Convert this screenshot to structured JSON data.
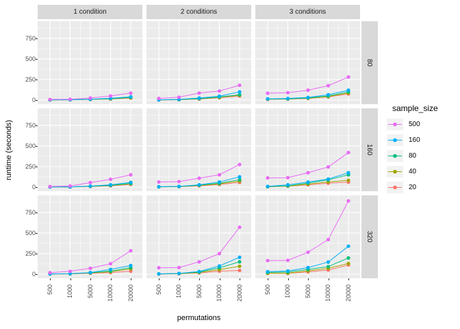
{
  "chart_data": {
    "type": "line",
    "xlabel": "permutations",
    "ylabel": "runtime (seconds)",
    "x_categories": [
      "500",
      "1000",
      "5000",
      "10000",
      "20000"
    ],
    "y_tick_labels": [
      "0",
      "250",
      "500",
      "750"
    ],
    "y_major": [
      0,
      250,
      500,
      750
    ],
    "y_minor": [
      125,
      375,
      625,
      875
    ],
    "ylim": [
      -50,
      958
    ],
    "grid": true,
    "col_facets": [
      "1 condition",
      "2 conditions",
      "3 conditions"
    ],
    "row_facets": [
      "80",
      "160",
      "320"
    ],
    "legend": {
      "title": "sample_size",
      "entries": [
        {
          "label": "500",
          "color": "#e76bf3"
        },
        {
          "label": "160",
          "color": "#00b0f6"
        },
        {
          "label": "80",
          "color": "#00bf7d"
        },
        {
          "label": "40",
          "color": "#a3a500"
        },
        {
          "label": "20",
          "color": "#f8766d"
        }
      ]
    },
    "colors": {
      "500": "#e76bf3",
      "160": "#00b0f6",
      "80": "#00bf7d",
      "40": "#a3a500",
      "20": "#f8766d"
    },
    "draw_order": [
      "20",
      "40",
      "80",
      "160",
      "500"
    ],
    "style": {
      "panel_bg": "#ebebeb",
      "strip_bg": "#d9d9d9",
      "grid_color": "#ffffff"
    },
    "panels": [
      {
        "row": "80",
        "col": "1 condition",
        "series": {
          "500": [
            8,
            10,
            25,
            50,
            85
          ],
          "160": [
            3,
            4,
            10,
            22,
            40
          ],
          "80": [
            3,
            4,
            9,
            17,
            33
          ],
          "40": [
            2,
            3,
            8,
            14,
            28
          ],
          "20": [
            2,
            3,
            7,
            12,
            24
          ]
        }
      },
      {
        "row": "80",
        "col": "2 conditions",
        "series": {
          "500": [
            20,
            35,
            85,
            110,
            180
          ],
          "160": [
            3,
            8,
            25,
            47,
            100
          ],
          "80": [
            3,
            6,
            18,
            38,
            65
          ],
          "40": [
            2,
            5,
            15,
            33,
            58
          ],
          "20": [
            2,
            4,
            12,
            28,
            50
          ]
        }
      },
      {
        "row": "80",
        "col": "3 conditions",
        "series": {
          "500": [
            83,
            90,
            120,
            175,
            280
          ],
          "160": [
            15,
            20,
            32,
            65,
            120
          ],
          "80": [
            12,
            15,
            27,
            50,
            100
          ],
          "40": [
            10,
            13,
            23,
            43,
            85
          ],
          "20": [
            8,
            11,
            20,
            38,
            75
          ]
        }
      },
      {
        "row": "160",
        "col": "1 condition",
        "series": {
          "500": [
            8,
            14,
            55,
            95,
            150
          ],
          "160": [
            2,
            3,
            12,
            28,
            58
          ],
          "80": [
            2,
            3,
            10,
            22,
            46
          ],
          "40": [
            2,
            3,
            9,
            19,
            40
          ],
          "20": [
            2,
            2,
            7,
            15,
            33
          ]
        }
      },
      {
        "row": "160",
        "col": "2 conditions",
        "series": {
          "500": [
            63,
            67,
            108,
            150,
            275
          ],
          "160": [
            5,
            9,
            28,
            63,
            125
          ],
          "80": [
            4,
            7,
            24,
            48,
            90
          ],
          "40": [
            3,
            6,
            20,
            40,
            74
          ],
          "20": [
            3,
            5,
            15,
            32,
            57
          ]
        }
      },
      {
        "row": "160",
        "col": "3 conditions",
        "series": {
          "500": [
            112,
            115,
            175,
            245,
            420
          ],
          "160": [
            9,
            28,
            62,
            98,
            175
          ],
          "80": [
            6,
            16,
            50,
            88,
            150
          ],
          "40": [
            5,
            13,
            36,
            62,
            82
          ],
          "20": [
            4,
            10,
            28,
            48,
            60
          ]
        }
      },
      {
        "row": "320",
        "col": "1 condition",
        "series": {
          "500": [
            18,
            35,
            72,
            127,
            285
          ],
          "160": [
            3,
            6,
            20,
            58,
            105
          ],
          "80": [
            3,
            5,
            18,
            37,
            80
          ],
          "40": [
            2,
            4,
            15,
            30,
            65
          ],
          "20": [
            2,
            3,
            10,
            19,
            36
          ]
        }
      },
      {
        "row": "320",
        "col": "2 conditions",
        "series": {
          "500": [
            78,
            80,
            150,
            250,
            570
          ],
          "160": [
            4,
            9,
            32,
            100,
            205
          ],
          "80": [
            3,
            8,
            26,
            78,
            150
          ],
          "40": [
            3,
            6,
            20,
            55,
            96
          ],
          "20": [
            2,
            5,
            15,
            36,
            45
          ]
        }
      },
      {
        "row": "320",
        "col": "3 conditions",
        "series": {
          "500": [
            165,
            168,
            267,
            420,
            890
          ],
          "160": [
            30,
            39,
            80,
            147,
            340
          ],
          "80": [
            22,
            26,
            58,
            92,
            197
          ],
          "40": [
            9,
            13,
            40,
            72,
            130
          ],
          "20": [
            11,
            9,
            28,
            50,
            112
          ]
        }
      }
    ]
  }
}
